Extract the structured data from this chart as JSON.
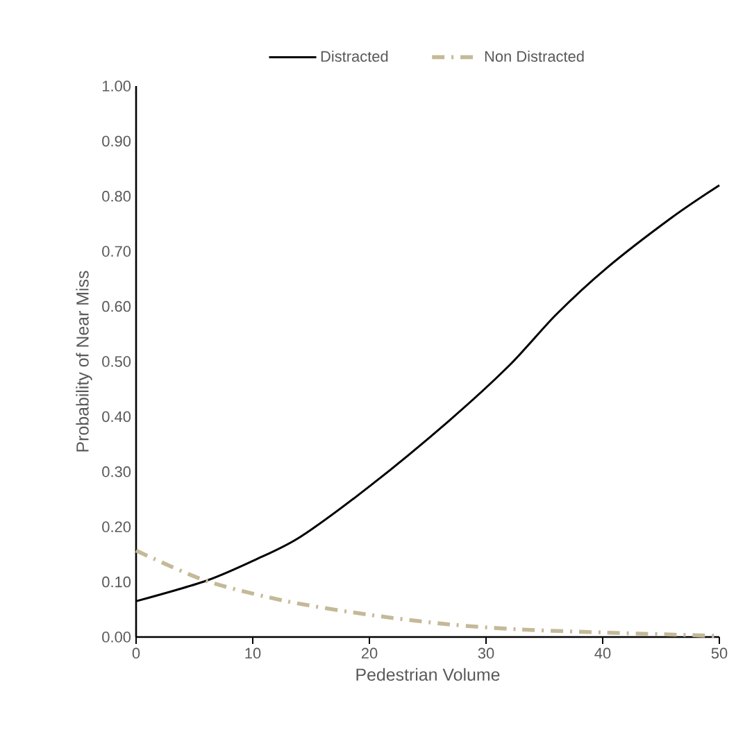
{
  "chart_data": {
    "type": "line",
    "xlabel": "Pedestrian Volume",
    "ylabel": "Probability of Near Miss",
    "xlim": [
      0,
      50
    ],
    "xticks": [
      0,
      10,
      20,
      30,
      40,
      50
    ],
    "ylim": [
      0,
      1
    ],
    "yticks": [
      {
        "value": 0,
        "label": "0.00"
      },
      {
        "value": 0.1,
        "label": "0.10"
      },
      {
        "value": 0.2,
        "label": "0.20"
      },
      {
        "value": 0.3,
        "label": "0.30"
      },
      {
        "value": 0.4,
        "label": "0.40"
      },
      {
        "value": 0.5,
        "label": "0.50"
      },
      {
        "value": 0.6,
        "label": "0.60"
      },
      {
        "value": 0.7,
        "label": "0.70"
      },
      {
        "value": 0.8,
        "label": "0.80"
      },
      {
        "value": 0.9,
        "label": "0.90"
      },
      {
        "value": 1,
        "label": "1.00"
      }
    ],
    "legend": "top",
    "grid": false,
    "marker": "none",
    "series": [
      {
        "name": "Distracted",
        "color": "#000000",
        "line_style": "solid",
        "x": [
          0,
          6,
          10.2,
          14.1,
          20.1,
          26.8,
          32,
          36,
          40.3,
          45.9,
          50
        ],
        "values": [
          0.065,
          0.102,
          0.14,
          0.182,
          0.275,
          0.392,
          0.493,
          0.585,
          0.669,
          0.761,
          0.82
        ]
      },
      {
        "name": "Non Distracted",
        "color": "#c4b998",
        "line_style": "dashdot",
        "x": [
          0,
          6,
          12.9,
          20.1,
          26.8,
          32.7,
          40.3,
          50
        ],
        "values": [
          0.157,
          0.102,
          0.065,
          0.04,
          0.023,
          0.014,
          0.008,
          0.002
        ]
      }
    ]
  }
}
